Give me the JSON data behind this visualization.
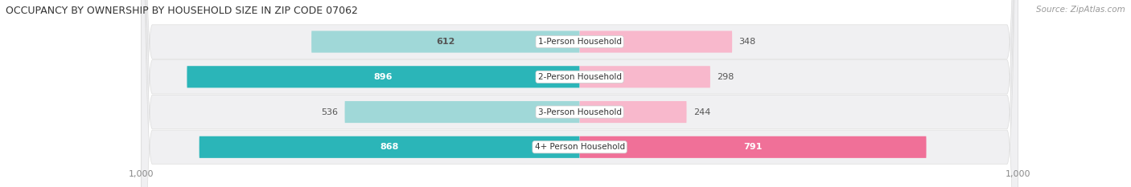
{
  "title": "OCCUPANCY BY OWNERSHIP BY HOUSEHOLD SIZE IN ZIP CODE 07062",
  "source": "Source: ZipAtlas.com",
  "categories": [
    "1-Person Household",
    "2-Person Household",
    "3-Person Household",
    "4+ Person Household"
  ],
  "owner_values": [
    612,
    896,
    536,
    868
  ],
  "renter_values": [
    348,
    298,
    244,
    791
  ],
  "max_scale": 1000,
  "owner_color_dark": "#2BB5B8",
  "owner_color_light": "#A0D8D8",
  "renter_color_dark": "#F07098",
  "renter_color_light": "#F8B8CC",
  "row_bg_color": "#F0F0F2",
  "row_border_color": "#DDDDDD",
  "label_white": "#FFFFFF",
  "label_dark": "#555555",
  "title_color": "#333333",
  "source_color": "#999999",
  "figsize": [
    14.06,
    2.33
  ],
  "dpi": 100
}
